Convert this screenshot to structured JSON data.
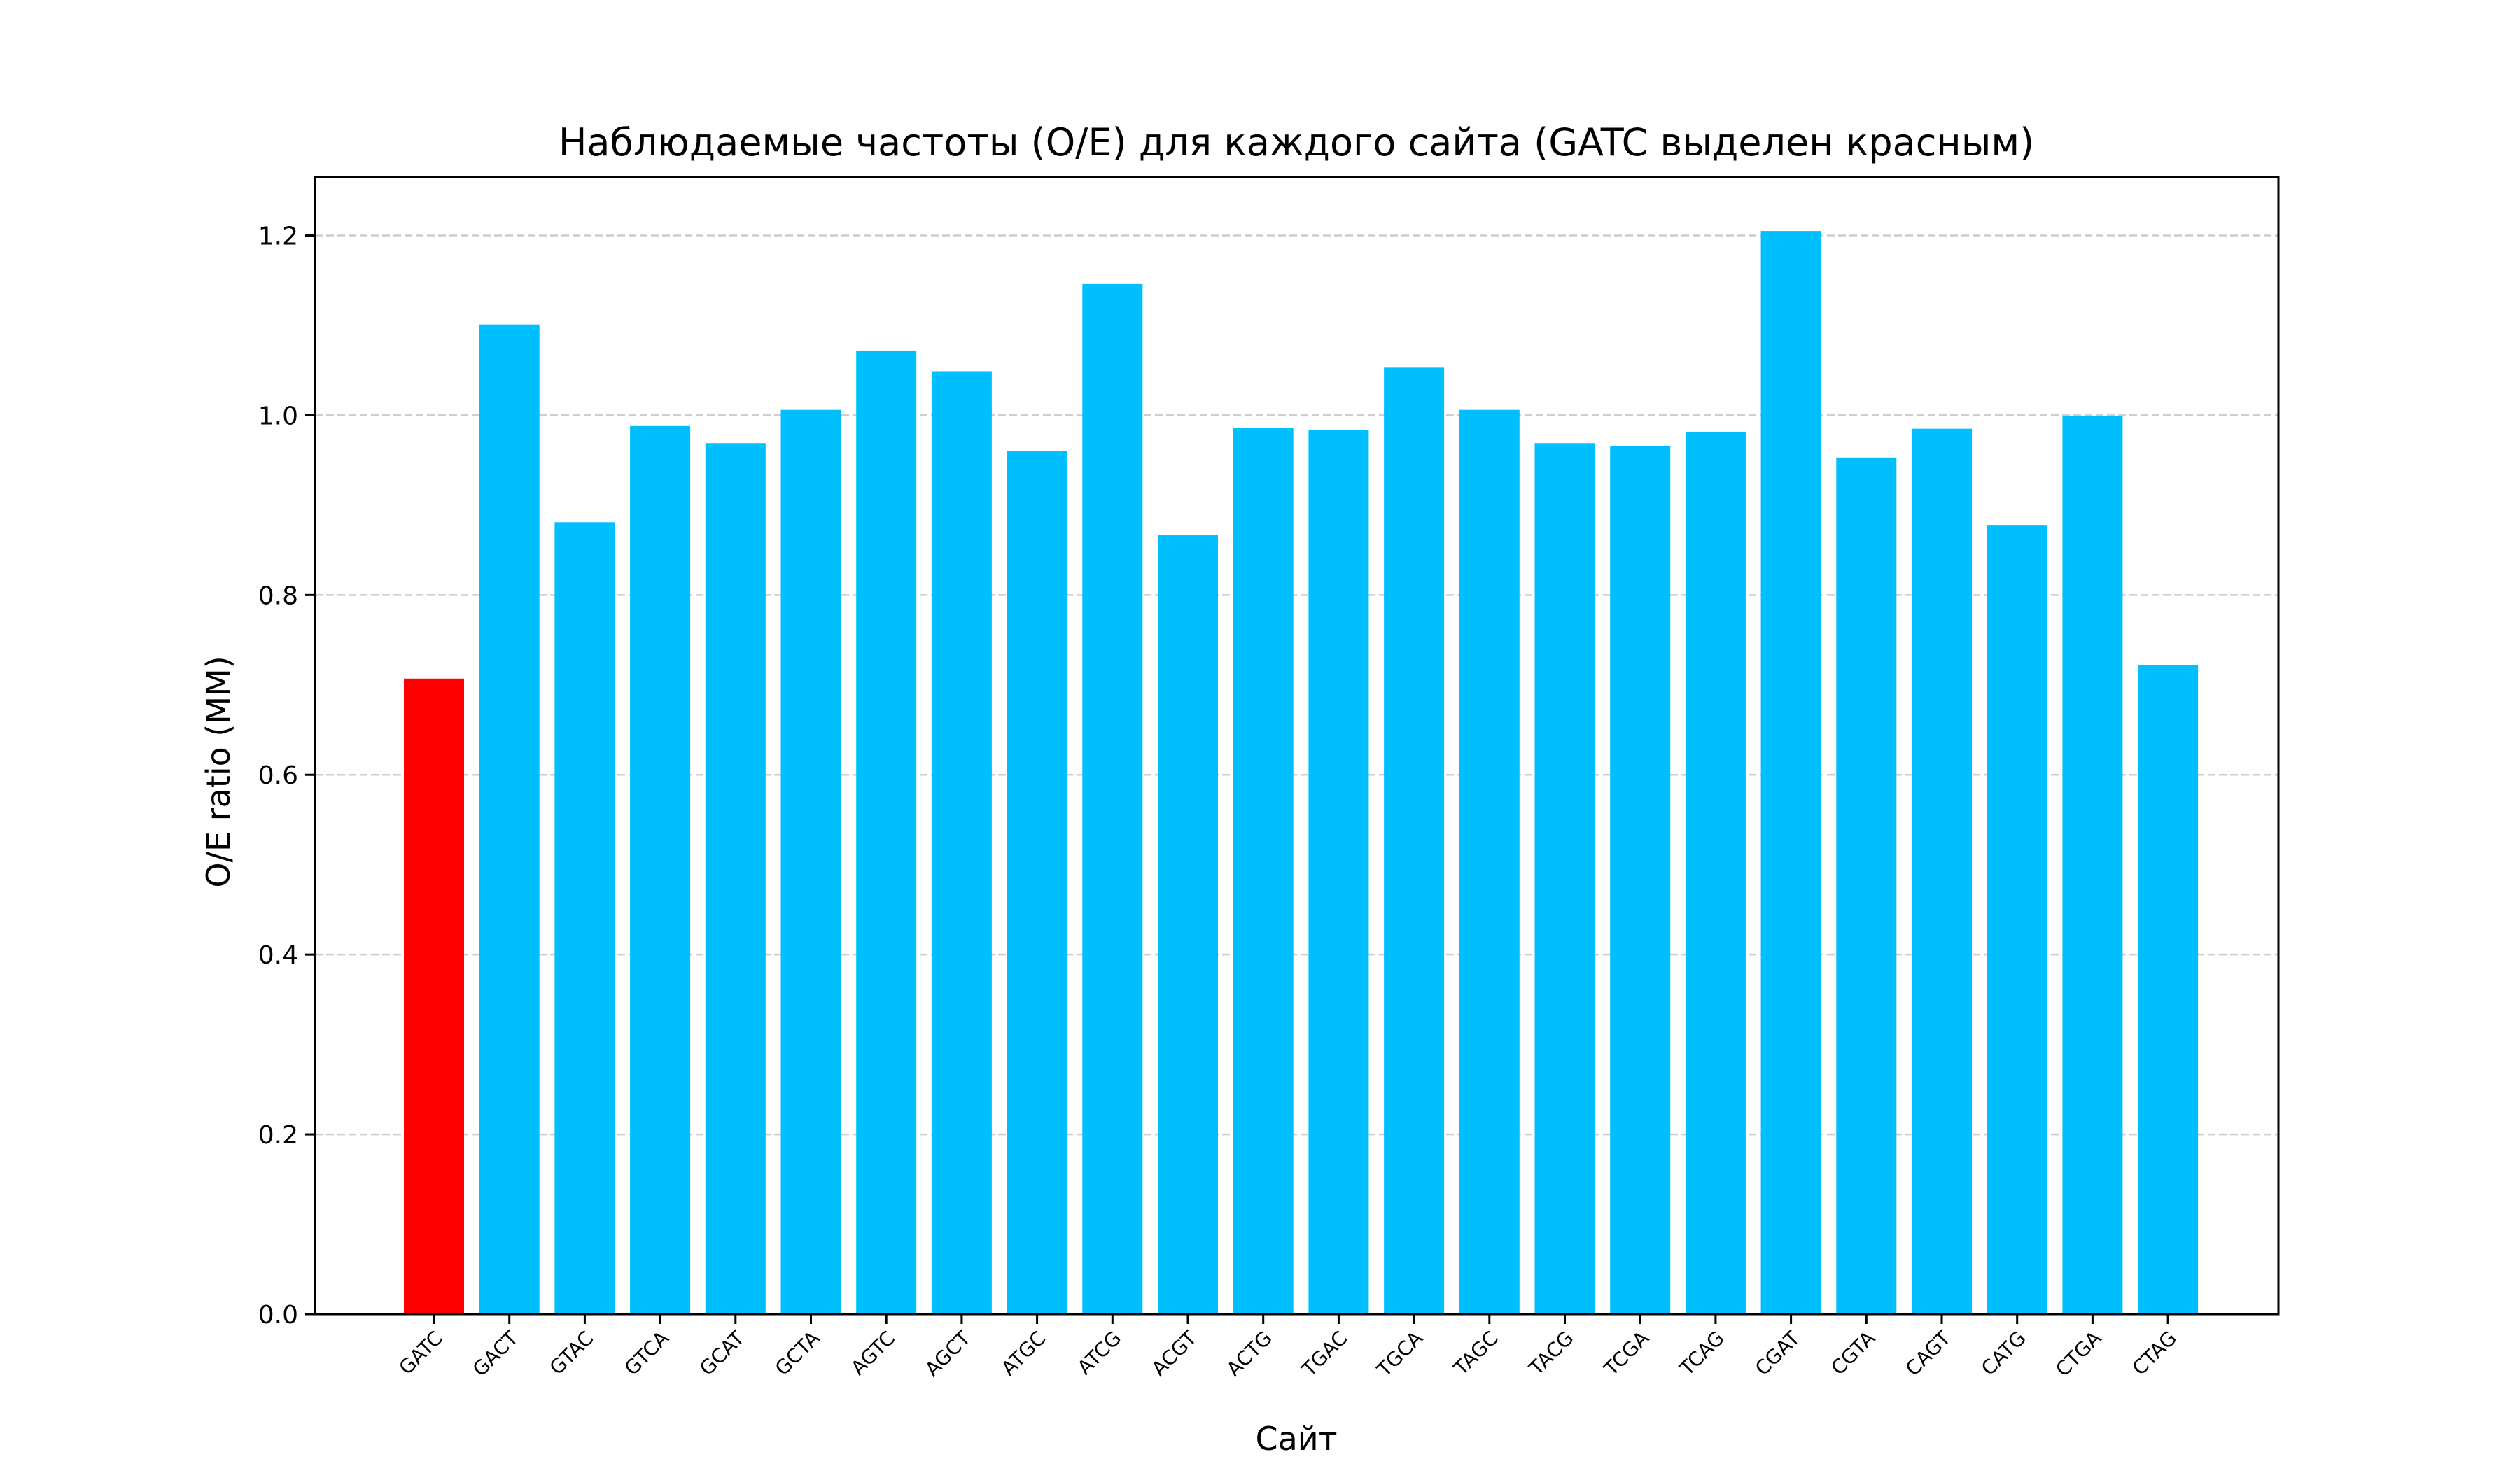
{
  "chart_data": {
    "type": "bar",
    "title": "Наблюдаемые частоты (O/E) для каждого сайта (GATC выделен красным)",
    "xlabel": "Сайт",
    "ylabel": "O/E ratio (MM)",
    "ylim": [
      0,
      1.265
    ],
    "yticks": [
      0.0,
      0.2,
      0.4,
      0.6,
      0.8,
      1.0,
      1.2
    ],
    "ytick_labels": [
      "0.0",
      "0.2",
      "0.4",
      "0.6",
      "0.8",
      "1.0",
      "1.2"
    ],
    "grid": "y-dashed",
    "categories": [
      "GATC",
      "GACT",
      "GTAC",
      "GTCA",
      "GCAT",
      "GCTA",
      "AGTC",
      "AGCT",
      "ATGC",
      "ATCG",
      "ACGT",
      "ACTG",
      "TGAC",
      "TGCA",
      "TAGC",
      "TACG",
      "TCGA",
      "TCAG",
      "CGAT",
      "CGTA",
      "CAGT",
      "CATG",
      "CTGA",
      "CTAG"
    ],
    "values": [
      0.707,
      1.101,
      0.881,
      0.988,
      0.969,
      1.006,
      1.072,
      1.049,
      0.96,
      1.146,
      0.867,
      0.986,
      0.984,
      1.053,
      1.006,
      0.969,
      0.966,
      0.981,
      1.205,
      0.953,
      0.985,
      0.878,
      0.999,
      0.722
    ],
    "highlight_category": "GATC",
    "colors": {
      "default": "#00BFFF",
      "highlight": "#FF0000",
      "grid": "#cccccc",
      "axis": "#000000"
    }
  }
}
